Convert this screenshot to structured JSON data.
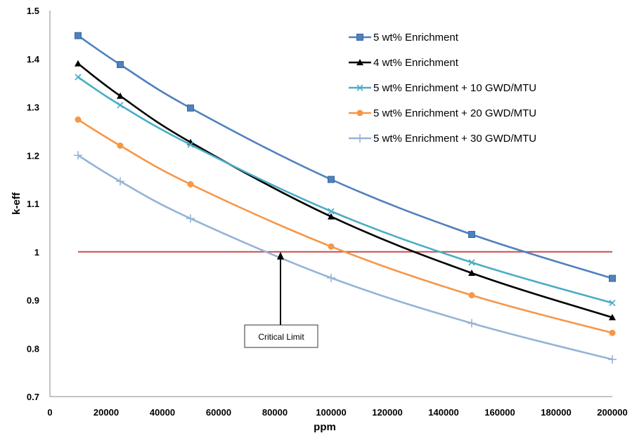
{
  "chart_data": {
    "type": "line",
    "title": "",
    "xlabel": "ppm",
    "ylabel": "k-eff",
    "xlim": [
      0,
      200000
    ],
    "ylim": [
      0.7,
      1.5
    ],
    "x_ticks": [
      "0",
      "20000",
      "40000",
      "60000",
      "80000",
      "100000",
      "120000",
      "140000",
      "160000",
      "180000",
      "200000"
    ],
    "y_ticks": [
      "0.7",
      "0.8",
      "0.9",
      "1",
      "1.1",
      "1.2",
      "1.3",
      "1.4",
      "1.5"
    ],
    "x": [
      10000,
      25000,
      50000,
      100000,
      150000,
      200000
    ],
    "series": [
      {
        "name": "5 wt% Enrichment",
        "color": "#4f81bd",
        "marker": "square",
        "values": [
          1.448,
          1.388,
          1.298,
          1.15,
          1.036,
          0.945
        ]
      },
      {
        "name": "4 wt% Enrichment",
        "color": "#000000",
        "marker": "triangle",
        "values": [
          1.39,
          1.323,
          1.227,
          1.073,
          0.956,
          0.864
        ]
      },
      {
        "name": "5 wt% Enrichment + 10 GWD/MTU",
        "color": "#4bacc6",
        "marker": "x",
        "values": [
          1.362,
          1.304,
          1.222,
          1.084,
          0.978,
          0.894
        ]
      },
      {
        "name": "5 wt% Enrichment + 20 GWD/MTU",
        "color": "#f79646",
        "marker": "circle",
        "values": [
          1.274,
          1.22,
          1.14,
          1.011,
          0.91,
          0.832
        ]
      },
      {
        "name": "5 wt% Enrichment + 30 GWD/MTU",
        "color": "#95b3d7",
        "marker": "plus",
        "values": [
          1.2,
          1.146,
          1.069,
          0.946,
          0.852,
          0.777
        ]
      }
    ],
    "reference_line": {
      "y": 1.0,
      "x_range": [
        10000,
        200000
      ],
      "color": "#c0504d"
    },
    "annotation": {
      "text": "Critical Limit",
      "target": [
        82000,
        1.0
      ]
    },
    "legend_position": "top-right",
    "grid": false
  }
}
